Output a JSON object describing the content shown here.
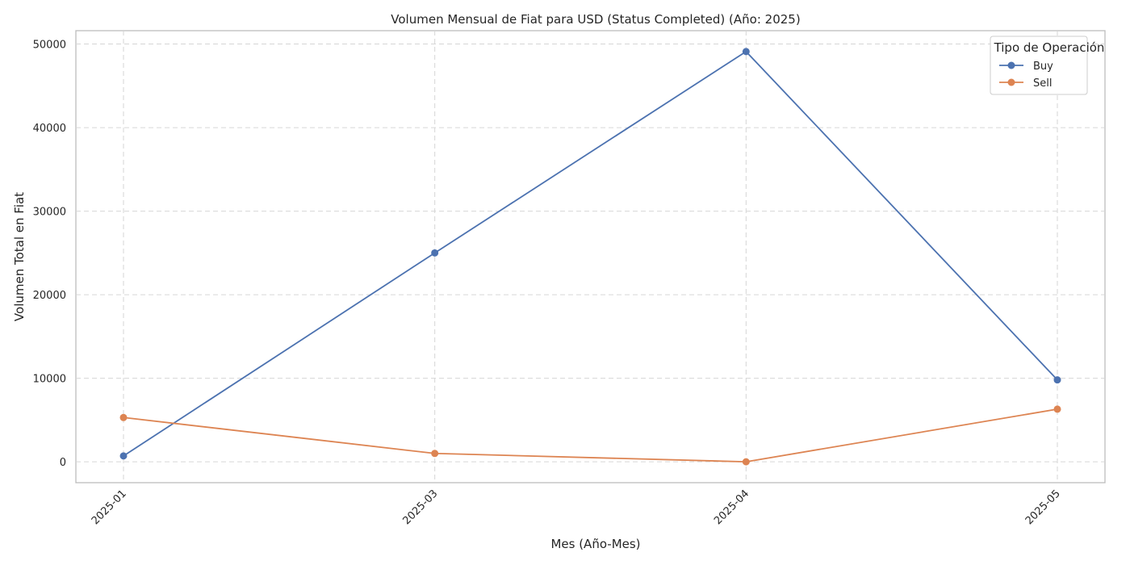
{
  "chart_data": {
    "type": "line",
    "title": "Volumen Mensual de Fiat para USD (Status Completed) (Año: 2025)",
    "xlabel": "Mes (Año-Mes)",
    "ylabel": "Volumen Total en Fiat",
    "categories": [
      "2025-01",
      "2025-03",
      "2025-04",
      "2025-05"
    ],
    "yticks": [
      0,
      10000,
      20000,
      30000,
      40000,
      50000
    ],
    "ylim": [
      -2500,
      51600
    ],
    "grid": true,
    "legend": {
      "title": "Tipo de Operación",
      "placement": "top-right"
    },
    "series": [
      {
        "name": "Buy",
        "color": "#4c72b0",
        "values": [
          700,
          25000,
          49100,
          9800
        ]
      },
      {
        "name": "Sell",
        "color": "#dd8452",
        "values": [
          5300,
          1000,
          0,
          6300
        ]
      }
    ]
  }
}
